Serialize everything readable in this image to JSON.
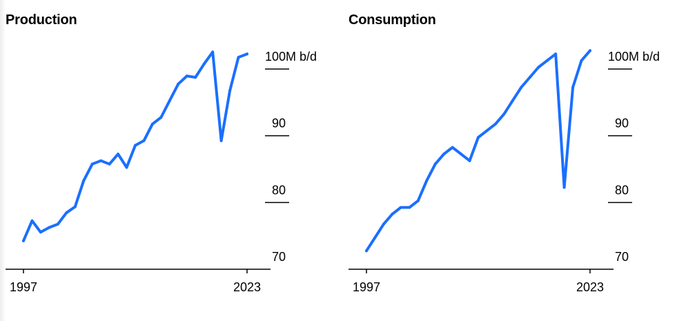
{
  "colors": {
    "line": "#1a6fff",
    "text": "#000000",
    "axis": "#000000"
  },
  "chart_data": [
    {
      "type": "line",
      "title": "Production",
      "x": [
        "1997",
        "1998",
        "1999",
        "2000",
        "2001",
        "2002",
        "2003",
        "2004",
        "2005",
        "2006",
        "2007",
        "2008",
        "2009",
        "2010",
        "2011",
        "2012",
        "2013",
        "2014",
        "2015",
        "2016",
        "2017",
        "2018",
        "2019",
        "2020",
        "2021",
        "2022",
        "2023"
      ],
      "series": [
        {
          "values": [
            72.5,
            75.5,
            73.8,
            74.5,
            75.0,
            76.7,
            77.6,
            81.5,
            84.0,
            84.5,
            84.0,
            85.5,
            83.5,
            86.8,
            87.5,
            90.0,
            91.0,
            93.5,
            96.0,
            97.2,
            97.0,
            99.0,
            100.8,
            87.5,
            95.0,
            100.0,
            100.5
          ]
        }
      ],
      "x_ticks": [
        "1997",
        "2023"
      ],
      "y_ticks": [
        {
          "value": 70,
          "label": "70"
        },
        {
          "value": 80,
          "label": "80"
        },
        {
          "value": 90,
          "label": "90"
        },
        {
          "value": 100,
          "label": "100M b/d"
        }
      ],
      "ylim": [
        70,
        101
      ]
    },
    {
      "type": "line",
      "title": "Consumption",
      "x": [
        "1997",
        "1998",
        "1999",
        "2000",
        "2001",
        "2002",
        "2003",
        "2004",
        "2005",
        "2006",
        "2007",
        "2008",
        "2009",
        "2010",
        "2011",
        "2012",
        "2013",
        "2014",
        "2015",
        "2016",
        "2017",
        "2018",
        "2019",
        "2020",
        "2021",
        "2022",
        "2023"
      ],
      "series": [
        {
          "values": [
            71.0,
            73.0,
            75.0,
            76.5,
            77.5,
            77.5,
            78.5,
            81.5,
            84.0,
            85.5,
            86.5,
            85.5,
            84.5,
            88.0,
            89.0,
            90.0,
            91.5,
            93.5,
            95.5,
            97.0,
            98.5,
            99.5,
            100.5,
            80.5,
            95.5,
            99.5,
            101.0
          ]
        }
      ],
      "x_ticks": [
        "1997",
        "2023"
      ],
      "y_ticks": [
        {
          "value": 70,
          "label": "70"
        },
        {
          "value": 80,
          "label": "80"
        },
        {
          "value": 90,
          "label": "90"
        },
        {
          "value": 100,
          "label": "100M b/d"
        }
      ],
      "ylim": [
        70,
        101
      ]
    }
  ]
}
